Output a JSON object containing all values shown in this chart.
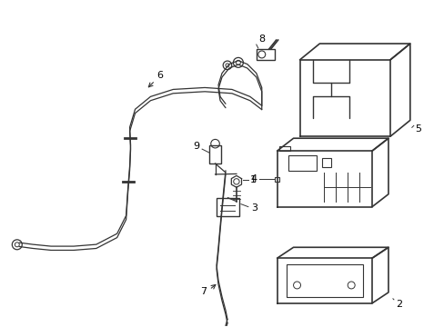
{
  "bg_color": "#ffffff",
  "line_color": "#333333",
  "label_color": "#000000",
  "fig_width": 4.89,
  "fig_height": 3.6,
  "dpi": 100
}
